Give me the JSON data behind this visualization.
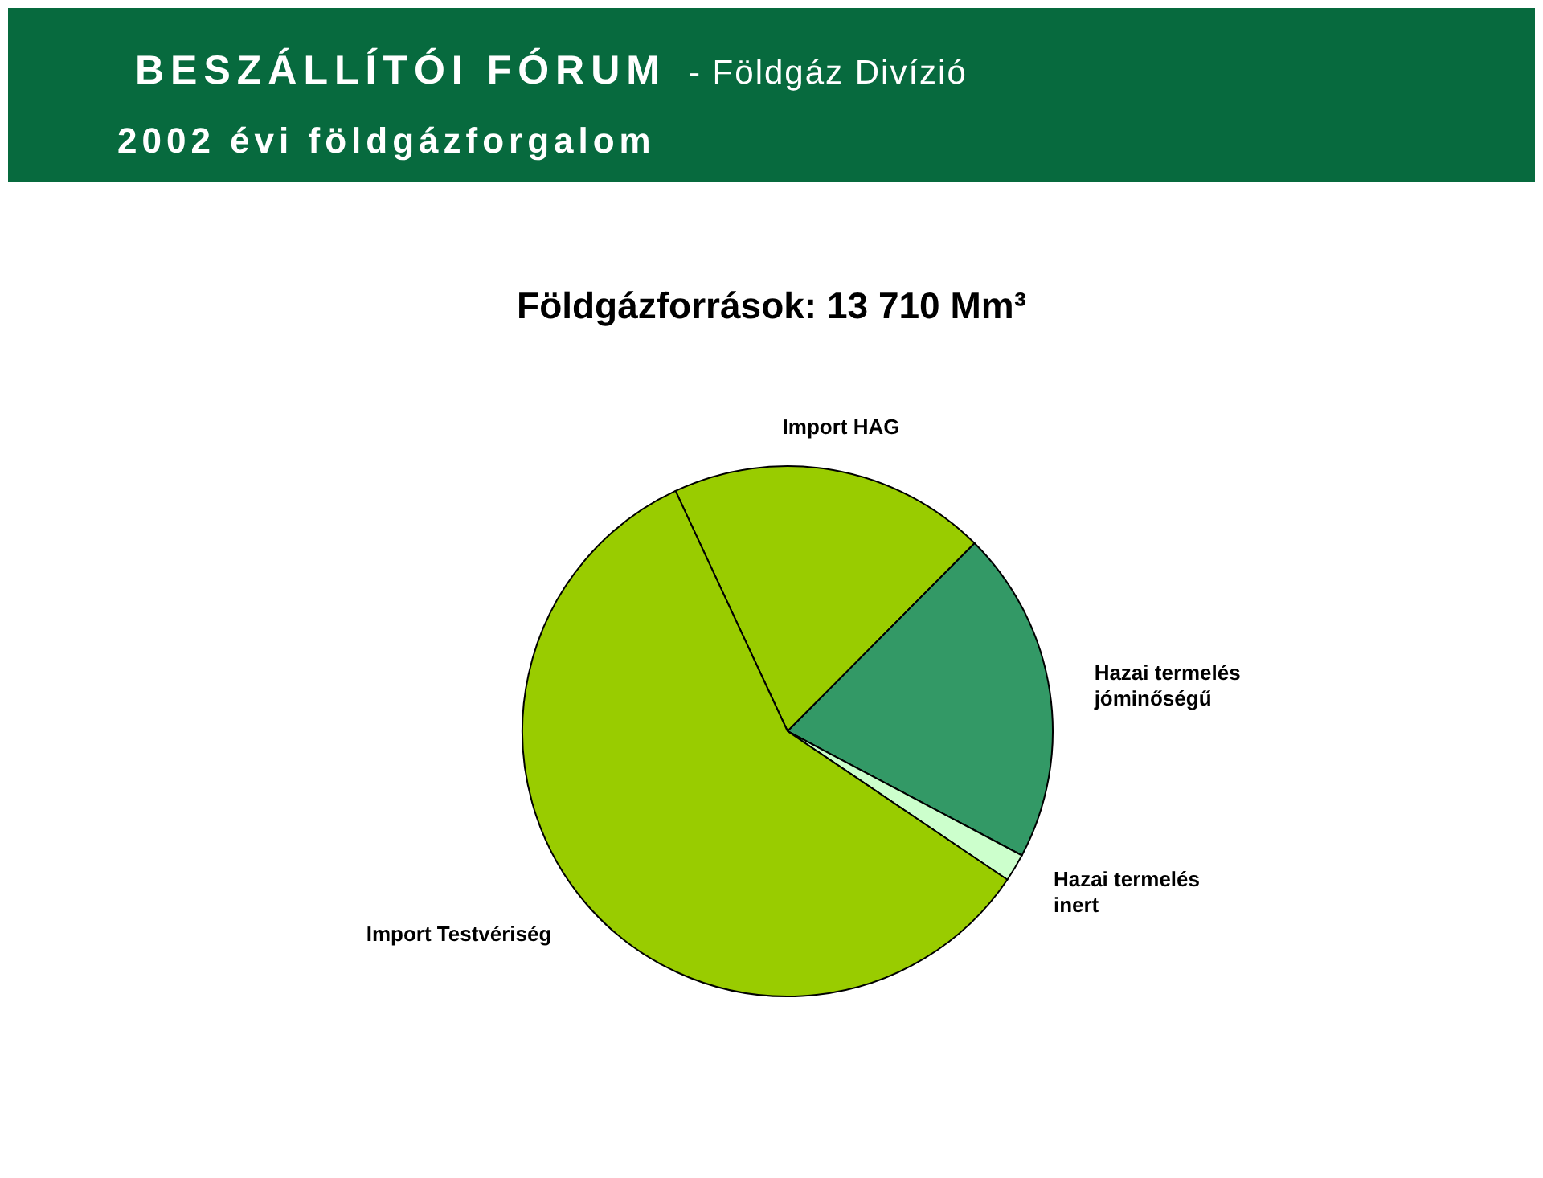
{
  "chart_data": {
    "type": "pie",
    "title": "Földgázforrások: 13 710 Mm³",
    "subtitle": "2002 évi földgázforgalom",
    "annotations": [
      "BESZÁLLÍTÓI FÓRUM",
      "- Földgáz Divízió"
    ],
    "categories": [
      "Import HAG",
      "Hazai termelés jóminőségű",
      "Hazai termelés inert",
      "Import Testvériség"
    ],
    "values": [
      19.4,
      20.3,
      1.7,
      58.6
    ],
    "colors": [
      "#99cc00",
      "#339966",
      "#ccffcc",
      "#99cc00"
    ]
  }
}
